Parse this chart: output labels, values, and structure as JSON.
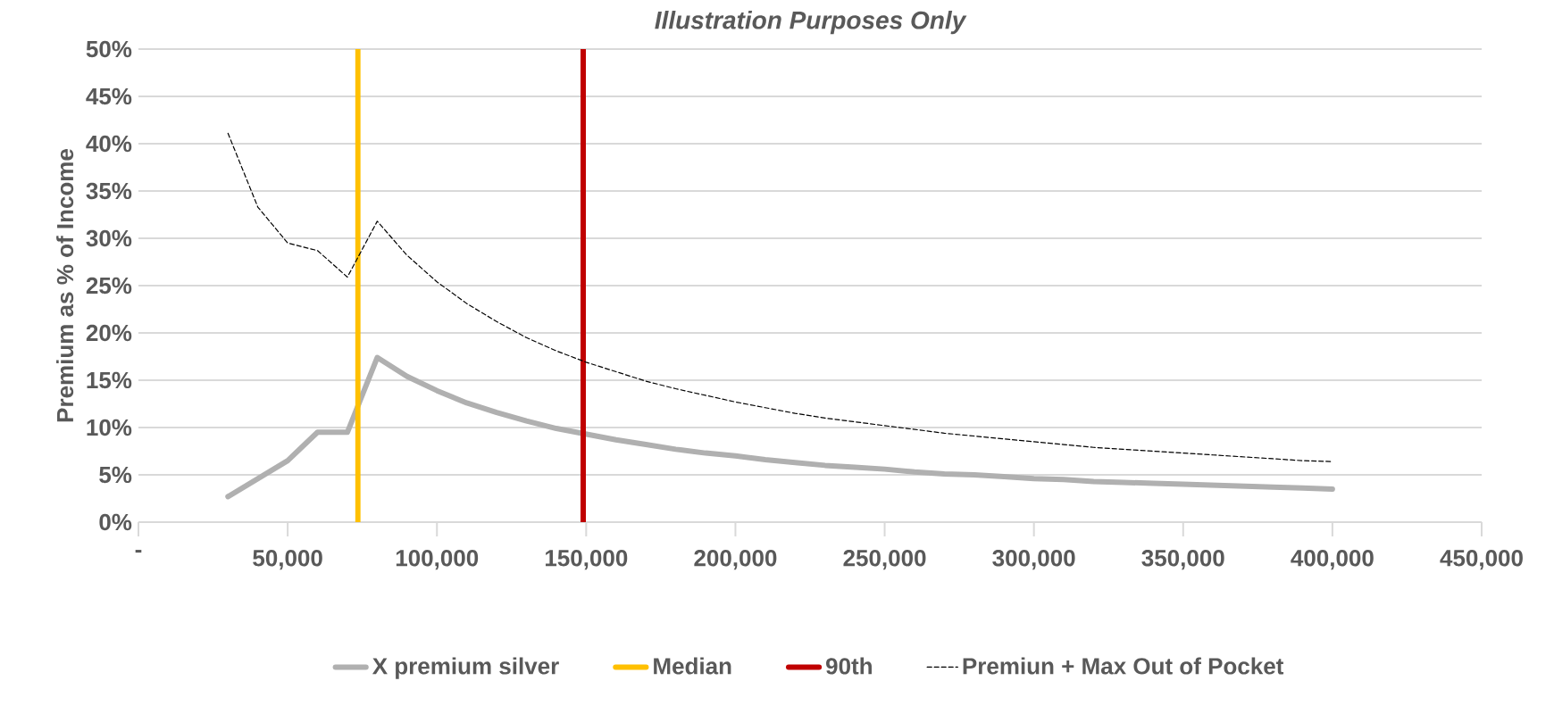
{
  "chart_data": {
    "type": "line",
    "title": "Illustration Purposes Only",
    "ylabel": "Premium as % of Income",
    "xlim": [
      0,
      450000
    ],
    "ylim": [
      0,
      50
    ],
    "xticks": [
      {
        "value": 0,
        "label": "-"
      },
      {
        "value": 50000,
        "label": "50,000"
      },
      {
        "value": 100000,
        "label": "100,000"
      },
      {
        "value": 150000,
        "label": "150,000"
      },
      {
        "value": 200000,
        "label": "200,000"
      },
      {
        "value": 250000,
        "label": "250,000"
      },
      {
        "value": 300000,
        "label": "300,000"
      },
      {
        "value": 350000,
        "label": "350,000"
      },
      {
        "value": 400000,
        "label": "400,000"
      },
      {
        "value": 450000,
        "label": "450,000"
      }
    ],
    "yticks": [
      {
        "value": 0,
        "label": "0%"
      },
      {
        "value": 5,
        "label": "5%"
      },
      {
        "value": 10,
        "label": "10%"
      },
      {
        "value": 15,
        "label": "15%"
      },
      {
        "value": 20,
        "label": "20%"
      },
      {
        "value": 25,
        "label": "25%"
      },
      {
        "value": 30,
        "label": "30%"
      },
      {
        "value": 35,
        "label": "35%"
      },
      {
        "value": 40,
        "label": "40%"
      },
      {
        "value": 45,
        "label": "45%"
      },
      {
        "value": 50,
        "label": "50%"
      }
    ],
    "x": [
      30000,
      40000,
      50000,
      60000,
      70000,
      80000,
      90000,
      100000,
      110000,
      120000,
      130000,
      140000,
      150000,
      160000,
      170000,
      180000,
      190000,
      200000,
      210000,
      220000,
      230000,
      240000,
      250000,
      260000,
      270000,
      280000,
      290000,
      300000,
      310000,
      320000,
      330000,
      340000,
      350000,
      360000,
      370000,
      380000,
      390000,
      400000
    ],
    "series": [
      {
        "name": "X premium silver",
        "color": "#b0b0b0",
        "line_style": "solid",
        "values": [
          2.7,
          4.6,
          6.5,
          9.5,
          9.5,
          17.4,
          15.4,
          13.9,
          12.6,
          11.6,
          10.7,
          9.9,
          9.3,
          8.7,
          8.2,
          7.7,
          7.3,
          7.0,
          6.6,
          6.3,
          6.0,
          5.8,
          5.6,
          5.3,
          5.1,
          5.0,
          4.8,
          4.6,
          4.5,
          4.3,
          4.2,
          4.1,
          4.0,
          3.9,
          3.8,
          3.7,
          3.6,
          3.5
        ]
      },
      {
        "name": "Premiun + Max Out of Pocket",
        "color": "#000000",
        "line_style": "dashed",
        "values": [
          41.1,
          33.3,
          29.5,
          28.7,
          25.9,
          31.8,
          28.2,
          25.4,
          23.1,
          21.2,
          19.5,
          18.1,
          16.9,
          15.9,
          14.9,
          14.1,
          13.4,
          12.7,
          12.1,
          11.5,
          11.0,
          10.6,
          10.2,
          9.8,
          9.4,
          9.1,
          8.8,
          8.5,
          8.2,
          7.9,
          7.7,
          7.5,
          7.3,
          7.1,
          6.9,
          6.7,
          6.5,
          6.4
        ]
      }
    ],
    "ref_lines": [
      {
        "axis": "x",
        "value": 73500,
        "label": "Median",
        "color": "#ffc000",
        "line_style": "solid"
      },
      {
        "axis": "x",
        "value": 149000,
        "label": "90th",
        "color": "#c00000",
        "line_style": "solid"
      }
    ],
    "grid": "y",
    "legend": "bottom",
    "marker": "none"
  }
}
